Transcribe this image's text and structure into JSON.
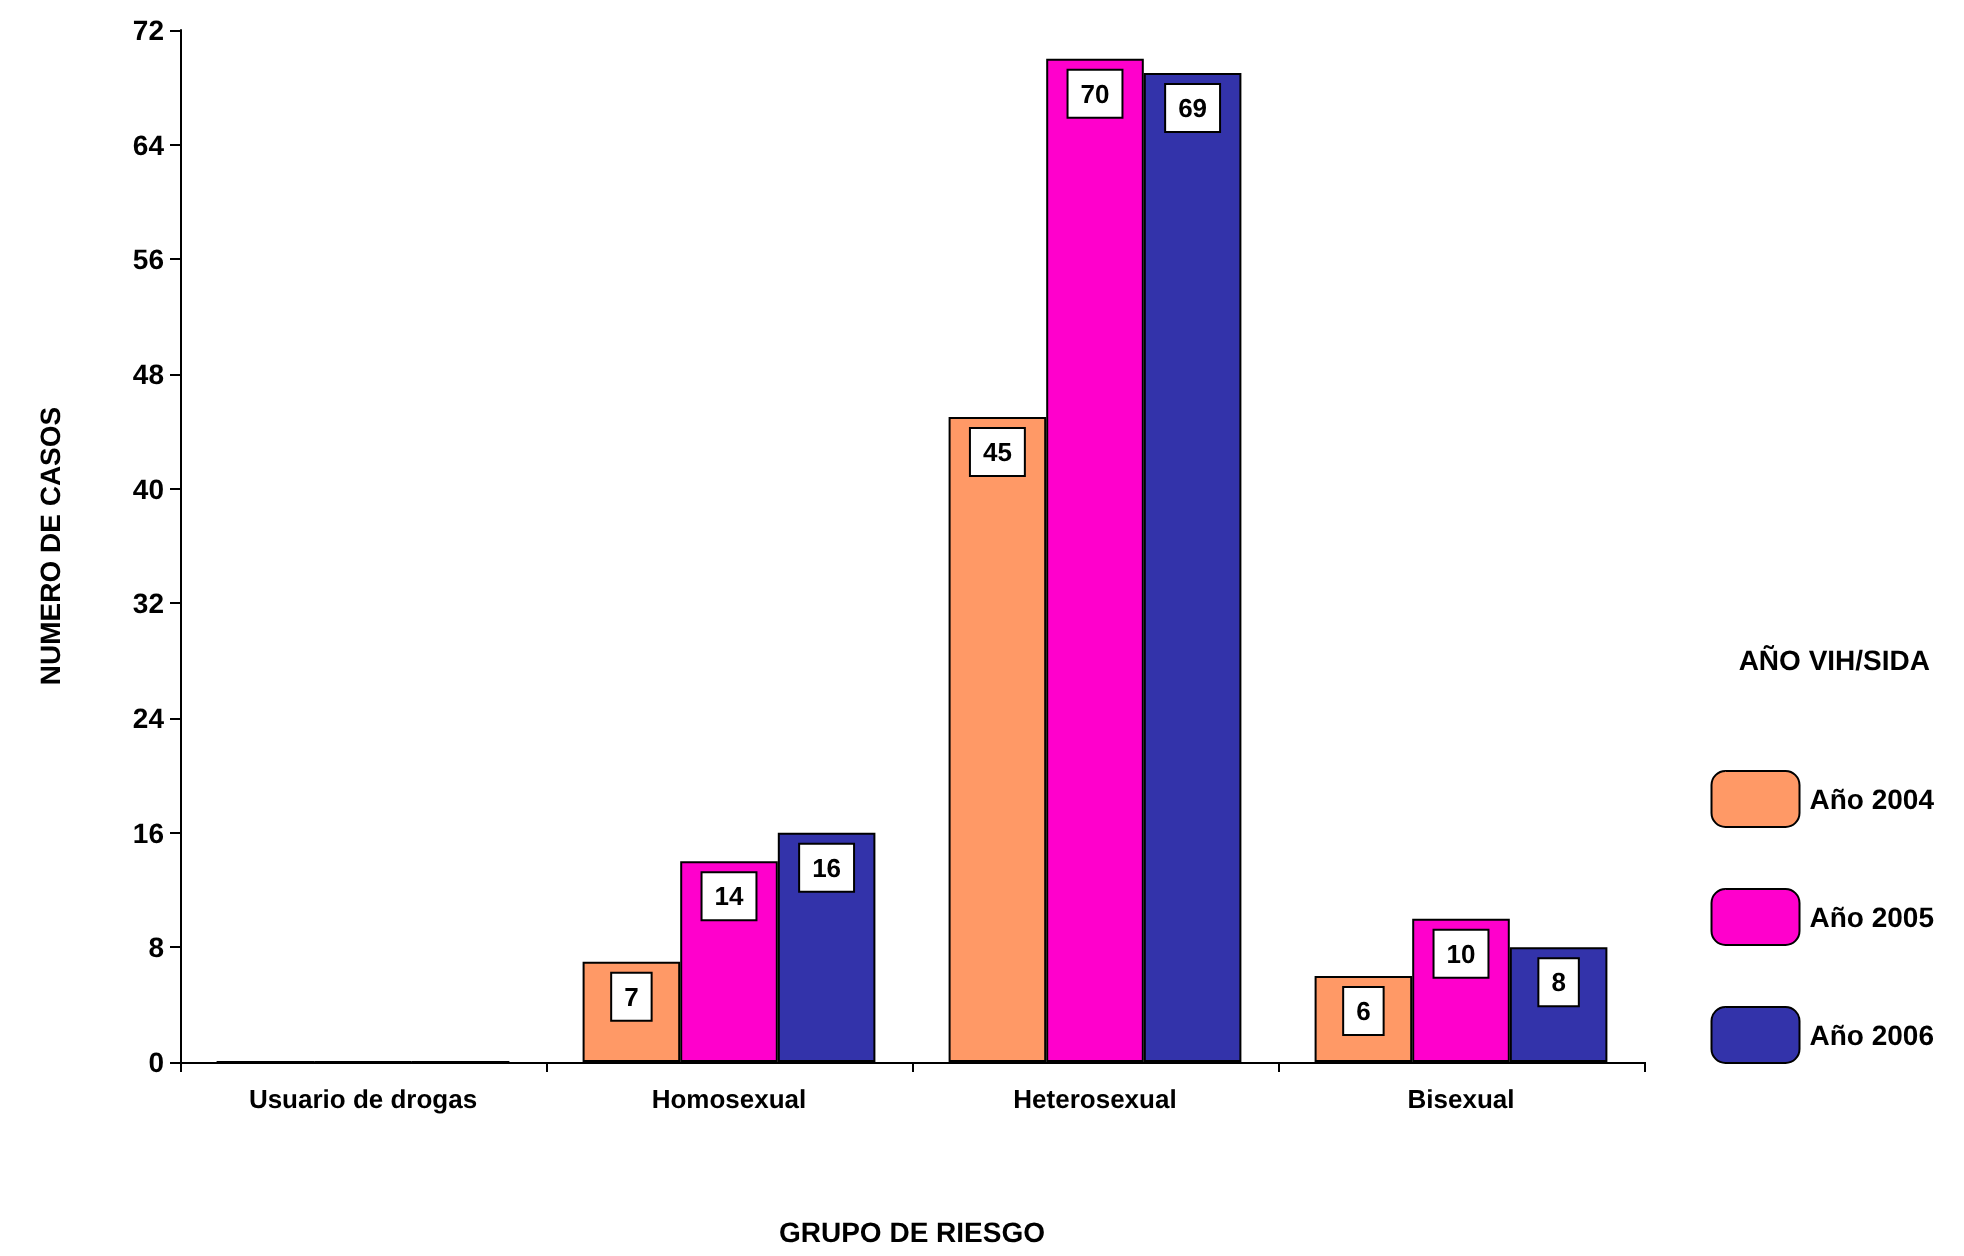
{
  "chart_data": {
    "type": "bar",
    "xlabel": "GRUPO DE RIESGO",
    "ylabel": "NUMERO DE CASOS",
    "legend_title": "AÑO VIH/SIDA",
    "categories": [
      "Usuario de drogas",
      "Homosexual",
      "Heterosexual",
      "Bisexual"
    ],
    "series": [
      {
        "name": "Año 2004",
        "color": "#ff9966",
        "values": [
          0,
          7,
          45,
          6
        ],
        "value_labels": [
          null,
          "7",
          "45",
          "6"
        ]
      },
      {
        "name": "Año 2005",
        "color": "#ff00cc",
        "values": [
          0,
          14,
          70,
          10
        ],
        "value_labels": [
          null,
          "14",
          "70",
          "10"
        ]
      },
      {
        "name": "Año 2006",
        "color": "#3333aa",
        "values": [
          0,
          16,
          69,
          8
        ],
        "value_labels": [
          null,
          "16",
          "69",
          "8"
        ]
      }
    ],
    "ylim": [
      0,
      72
    ],
    "yticks": [
      0,
      8,
      16,
      24,
      32,
      40,
      48,
      56,
      64,
      72
    ],
    "grid": false,
    "legend": "right"
  }
}
